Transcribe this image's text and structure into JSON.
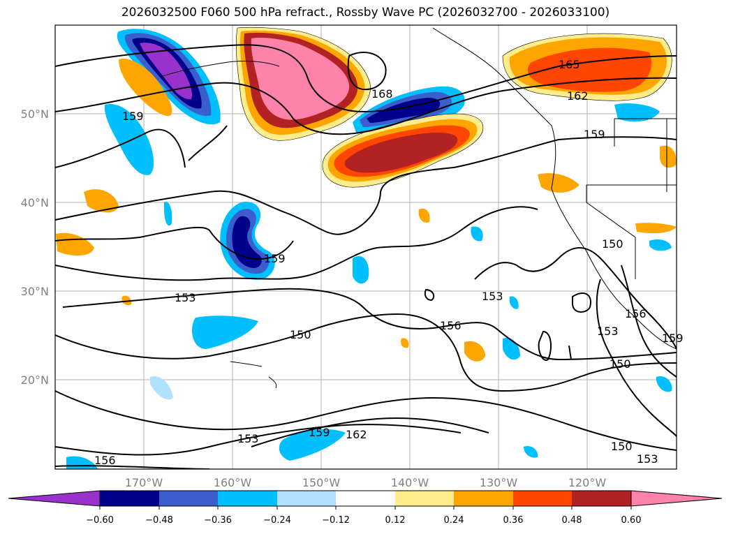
{
  "title": "2026032500 F060 500 hPa refract., Rossby Wave PC (2026032700 - 2026033100)",
  "map": {
    "lat_labels": [
      "50°N",
      "40°N",
      "30°N",
      "20°N"
    ],
    "lon_labels": [
      "170°W",
      "160°W",
      "150°W",
      "140°W",
      "130°W",
      "120°W"
    ],
    "contour_labels": [
      "165",
      "168",
      "162",
      "159",
      "159",
      "159",
      "153",
      "150",
      "156",
      "153",
      "150",
      "153",
      "156",
      "159",
      "162",
      "156",
      "150",
      "153",
      "150",
      "153",
      "159"
    ]
  },
  "colorbar": {
    "ticks": [
      "−0.60",
      "−0.48",
      "−0.36",
      "−0.24",
      "−0.12",
      "0.12",
      "0.24",
      "0.36",
      "0.48",
      "0.60"
    ],
    "colors": [
      "#9932cc",
      "#00008b",
      "#3a5fcd",
      "#00bfff",
      "#b0e2ff",
      "#ffffff",
      "#ffec8b",
      "#ffa500",
      "#ff4500",
      "#b22222",
      "#ff82ab"
    ]
  }
}
